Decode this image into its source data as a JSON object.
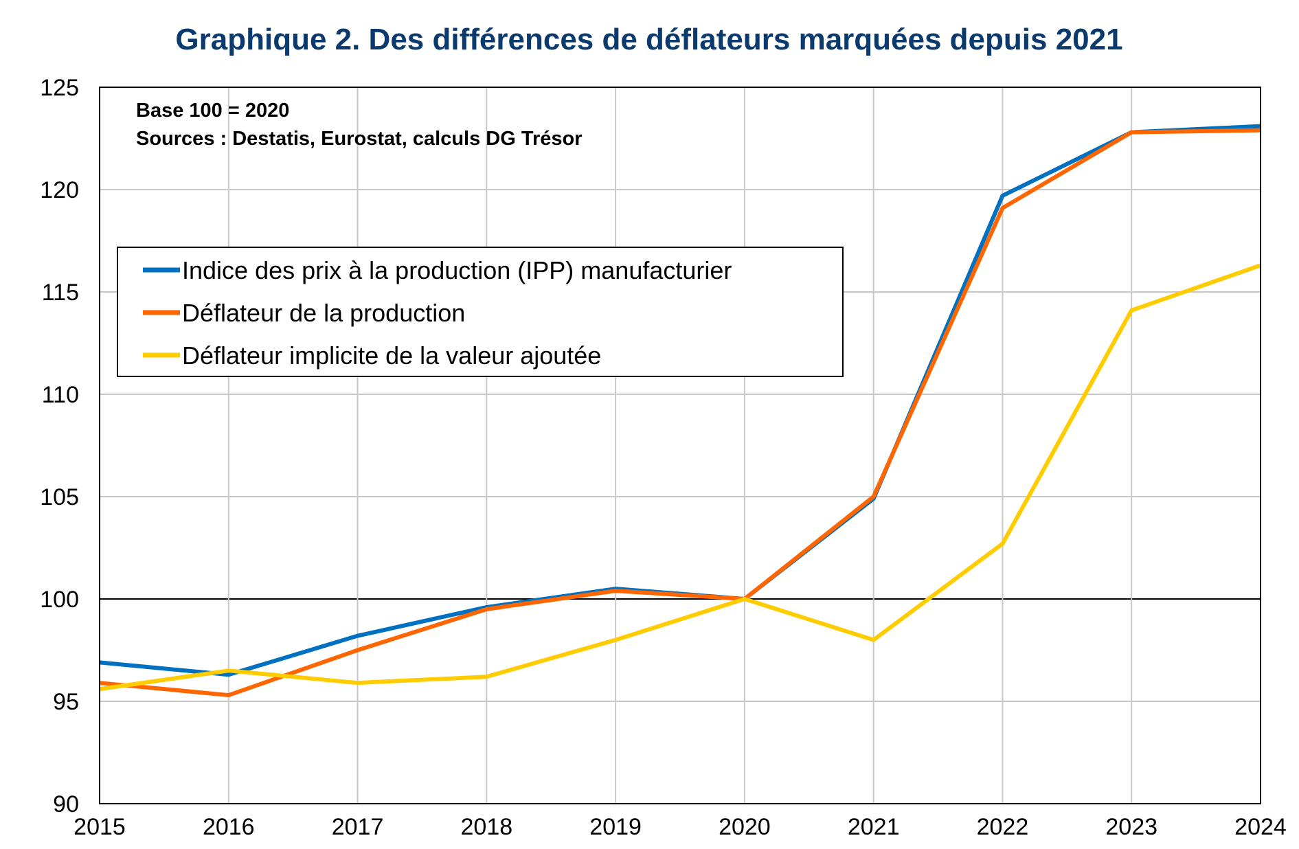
{
  "chart_data": {
    "type": "line",
    "title": "Graphique 2. Des différences de déflateurs marquées depuis 2021",
    "notes": [
      "Base 100 = 2020",
      "Sources : Destatis, Eurostat, calculs DG Trésor"
    ],
    "x": [
      2015,
      2016,
      2017,
      2018,
      2019,
      2020,
      2021,
      2022,
      2023,
      2024
    ],
    "xlabel": "",
    "ylabel": "",
    "xlim": [
      2015,
      2024
    ],
    "ylim": [
      90,
      125
    ],
    "yticks": [
      90,
      95,
      100,
      105,
      110,
      115,
      120,
      125
    ],
    "grid": true,
    "reference_line": 100,
    "legend_position": "upper-left",
    "series": [
      {
        "name": "Indice des prix à la production (IPP) manufacturier",
        "color": "#0070C0",
        "values": [
          96.9,
          96.3,
          98.2,
          99.6,
          100.5,
          100.0,
          104.9,
          119.7,
          122.8,
          123.1
        ]
      },
      {
        "name": "Déflateur de la production",
        "color": "#FF6600",
        "values": [
          95.9,
          95.3,
          97.5,
          99.5,
          100.4,
          100.0,
          105.0,
          119.1,
          122.8,
          122.9
        ]
      },
      {
        "name": "Déflateur implicite de la valeur ajoutée",
        "color": "#FFCC00",
        "values": [
          95.6,
          96.5,
          95.9,
          96.2,
          98.0,
          100.0,
          98.0,
          102.7,
          114.1,
          116.3
        ]
      }
    ],
    "title_color": "#0B3A6E"
  }
}
